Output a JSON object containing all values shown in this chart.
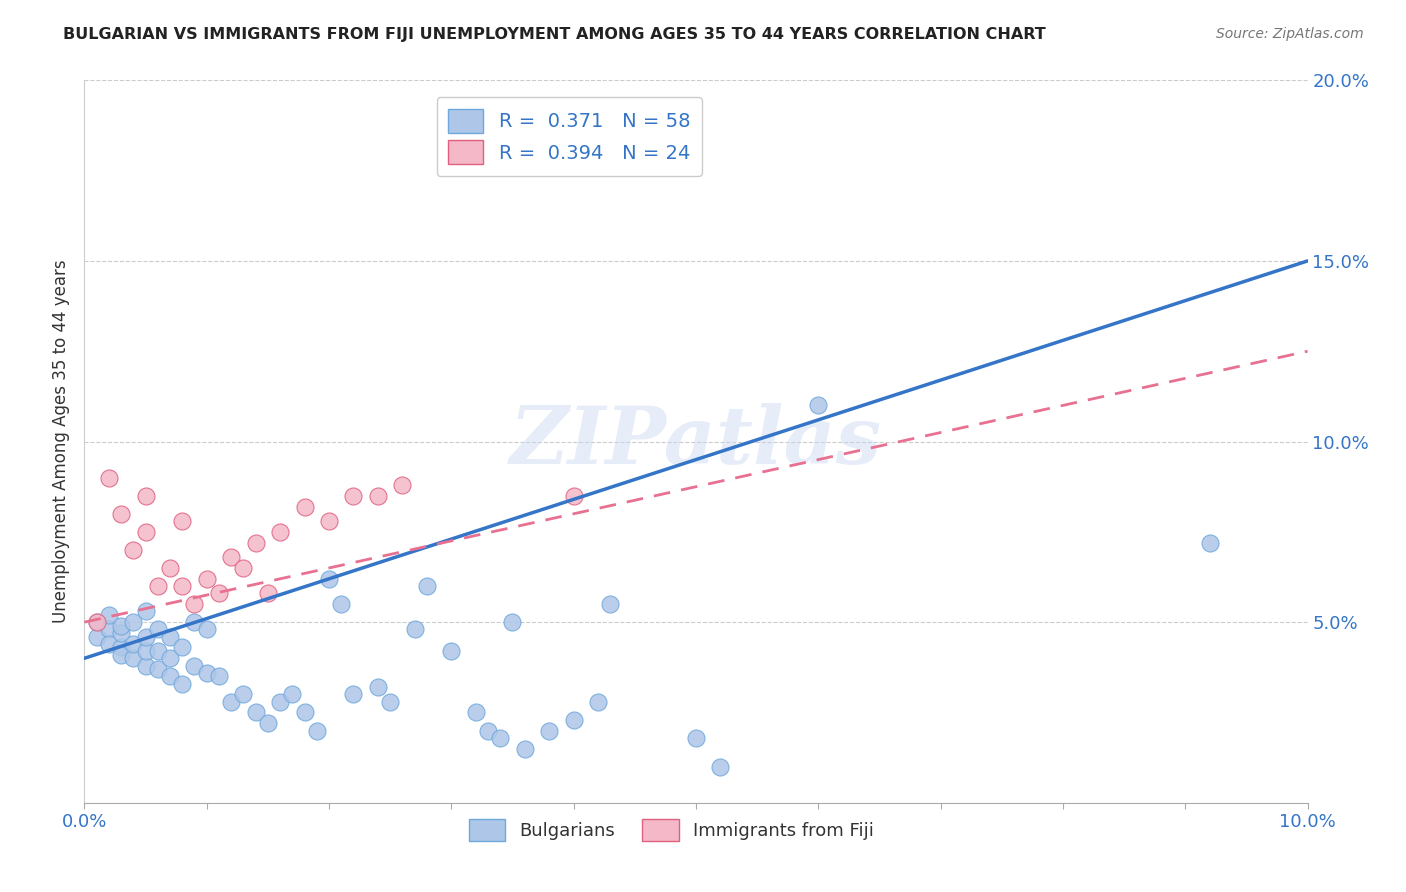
{
  "title": "BULGARIAN VS IMMIGRANTS FROM FIJI UNEMPLOYMENT AMONG AGES 35 TO 44 YEARS CORRELATION CHART",
  "source": "Source: ZipAtlas.com",
  "ylabel": "Unemployment Among Ages 35 to 44 years",
  "xlim": [
    0.0,
    0.1
  ],
  "ylim": [
    0.0,
    0.2
  ],
  "xticks": [
    0.0,
    0.01,
    0.02,
    0.03,
    0.04,
    0.05,
    0.06,
    0.07,
    0.08,
    0.09,
    0.1
  ],
  "yticks": [
    0.0,
    0.05,
    0.1,
    0.15,
    0.2
  ],
  "xtick_labels_show": {
    "0.0": "0.0%",
    "0.10": "10.0%"
  },
  "ytick_labels_show": {
    "0.05": "5.0%",
    "0.10": "10.0%",
    "0.15": "15.0%",
    "0.20": "20.0%"
  },
  "bulgarian_color": "#aec6e8",
  "bulgarian_edge": "#6fa8dc",
  "fiji_color": "#f4b8c8",
  "fiji_edge": "#e06080",
  "blue_line_color": "#3575c8",
  "pink_line_color": "#e87090",
  "legend_R1": "0.371",
  "legend_N1": "58",
  "legend_R2": "0.394",
  "legend_N2": "24",
  "blue_line_x": [
    0.0,
    0.1
  ],
  "blue_line_y": [
    0.04,
    0.15
  ],
  "pink_line_x": [
    0.0,
    0.1
  ],
  "pink_line_y": [
    0.05,
    0.125
  ],
  "bulgarian_x": [
    0.001,
    0.001,
    0.002,
    0.002,
    0.002,
    0.003,
    0.003,
    0.003,
    0.003,
    0.004,
    0.004,
    0.004,
    0.005,
    0.005,
    0.005,
    0.005,
    0.006,
    0.006,
    0.006,
    0.007,
    0.007,
    0.007,
    0.008,
    0.008,
    0.009,
    0.009,
    0.01,
    0.01,
    0.011,
    0.012,
    0.013,
    0.014,
    0.015,
    0.016,
    0.017,
    0.018,
    0.019,
    0.02,
    0.021,
    0.022,
    0.024,
    0.025,
    0.027,
    0.028,
    0.03,
    0.032,
    0.033,
    0.034,
    0.035,
    0.036,
    0.038,
    0.04,
    0.042,
    0.043,
    0.05,
    0.052,
    0.06,
    0.092
  ],
  "bulgarian_y": [
    0.05,
    0.046,
    0.048,
    0.044,
    0.052,
    0.043,
    0.047,
    0.041,
    0.049,
    0.04,
    0.044,
    0.05,
    0.038,
    0.042,
    0.046,
    0.053,
    0.037,
    0.042,
    0.048,
    0.035,
    0.04,
    0.046,
    0.033,
    0.043,
    0.038,
    0.05,
    0.036,
    0.048,
    0.035,
    0.028,
    0.03,
    0.025,
    0.022,
    0.028,
    0.03,
    0.025,
    0.02,
    0.062,
    0.055,
    0.03,
    0.032,
    0.028,
    0.048,
    0.06,
    0.042,
    0.025,
    0.02,
    0.018,
    0.05,
    0.015,
    0.02,
    0.023,
    0.028,
    0.055,
    0.018,
    0.01,
    0.11,
    0.072
  ],
  "fiji_x": [
    0.001,
    0.002,
    0.003,
    0.004,
    0.005,
    0.005,
    0.006,
    0.007,
    0.008,
    0.008,
    0.009,
    0.01,
    0.011,
    0.012,
    0.013,
    0.014,
    0.015,
    0.016,
    0.018,
    0.02,
    0.022,
    0.024,
    0.026,
    0.04
  ],
  "fiji_y": [
    0.05,
    0.09,
    0.08,
    0.07,
    0.085,
    0.075,
    0.06,
    0.065,
    0.078,
    0.06,
    0.055,
    0.062,
    0.058,
    0.068,
    0.065,
    0.072,
    0.058,
    0.075,
    0.082,
    0.078,
    0.085,
    0.085,
    0.088,
    0.085
  ]
}
